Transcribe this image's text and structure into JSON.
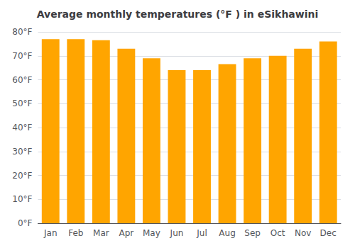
{
  "chart_data": {
    "type": "bar",
    "title": "Average monthly temperatures (°F ) in eSikhawini",
    "categories": [
      "Jan",
      "Feb",
      "Mar",
      "Apr",
      "May",
      "Jun",
      "Jul",
      "Aug",
      "Sep",
      "Oct",
      "Nov",
      "Dec"
    ],
    "values": [
      77,
      77,
      76.5,
      73,
      69,
      64,
      64,
      66.5,
      69,
      70,
      73,
      76
    ],
    "color": "#FFA500",
    "ylim": [
      0,
      80
    ],
    "yticks": [
      {
        "value": 0,
        "label": "0°F"
      },
      {
        "value": 10,
        "label": "10°F"
      },
      {
        "value": 20,
        "label": "20°F"
      },
      {
        "value": 30,
        "label": "30°F"
      },
      {
        "value": 40,
        "label": "40°F"
      },
      {
        "value": 50,
        "label": "50°F"
      },
      {
        "value": 60,
        "label": "60°F"
      },
      {
        "value": 70,
        "label": "70°F"
      },
      {
        "value": 80,
        "label": "80°F"
      }
    ],
    "grid": true
  }
}
